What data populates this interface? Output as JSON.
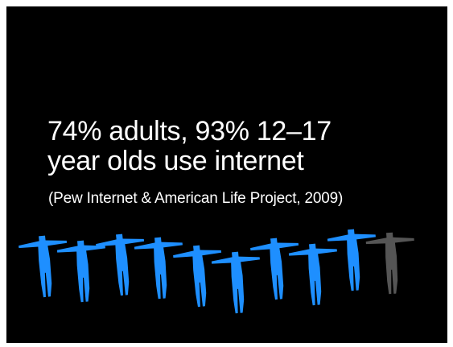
{
  "slide": {
    "headline_line1": "74% adults, 93% 12–17",
    "headline_line2": "year olds use internet",
    "citation": "(Pew Internet & American Life Project, 2009)"
  },
  "pictogram": {
    "total_figures": 10,
    "highlighted_figures": 9,
    "highlight_color": "#1e8fff",
    "muted_color": "#555555"
  },
  "colors": {
    "background": "#000000",
    "text": "#ffffff"
  }
}
